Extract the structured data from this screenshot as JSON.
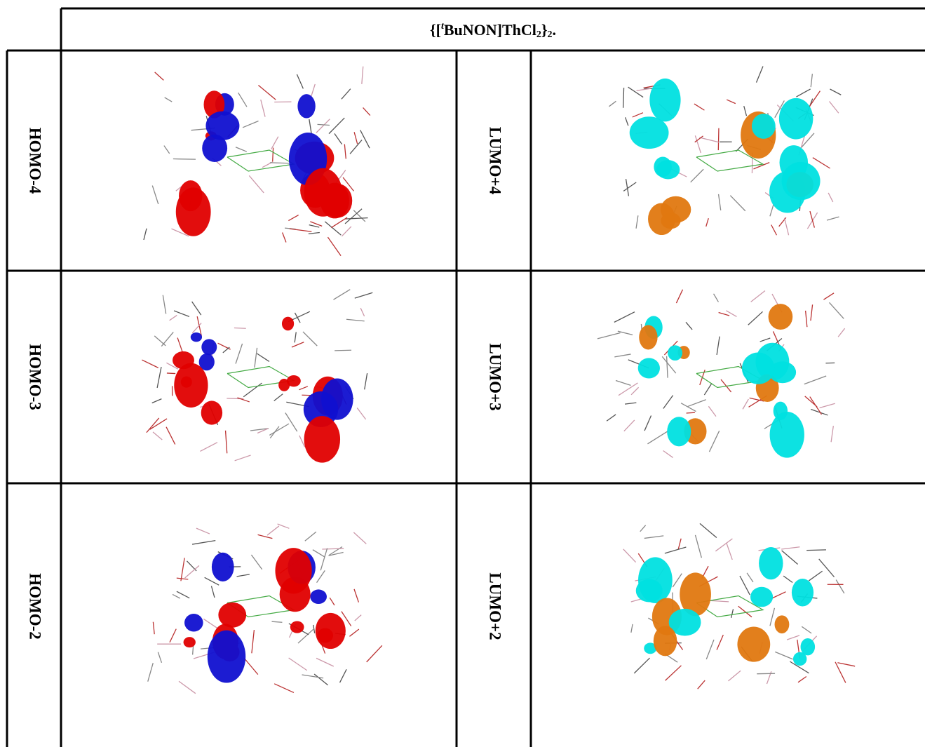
{
  "header": {
    "title_parts": [
      "{[",
      "t",
      "BuNON]ThCl",
      "2",
      "}",
      "2",
      "."
    ]
  },
  "table": {
    "rows": [
      [
        "HOMO-4",
        "LUMO+4"
      ],
      [
        "HOMO-3",
        "LUMO+3"
      ],
      [
        "HOMO-2",
        "LUMO+2"
      ]
    ]
  }
}
